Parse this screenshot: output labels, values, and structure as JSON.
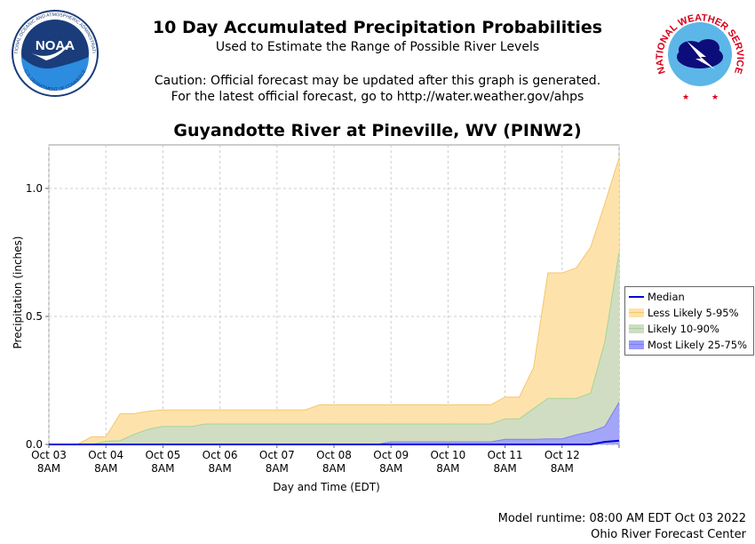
{
  "header": {
    "title": "10 Day Accumulated Precipitation Probabilities",
    "subtitle": "Used to Estimate the Range of Possible River Levels",
    "caution_line1": "Caution: Official forecast may be updated after this graph is generated.",
    "caution_line2": "For the latest official forecast, go to http://water.weather.gov/ahps"
  },
  "logos": {
    "noaa_text": "NOAA",
    "noaa_ring_top": "NATIONAL OCEANIC AND ATMOSPHERIC ADMINISTRATION",
    "noaa_ring_bottom": "U.S. DEPARTMENT OF COMMERCE",
    "nws_ring": "NATIONAL WEATHER SERVICE"
  },
  "footer": {
    "runtime": "Model runtime: 08:00 AM EDT Oct 03 2022",
    "center": "Ohio River Forecast Center"
  },
  "colors": {
    "median": "#0000dd",
    "less_likely_fill": "#fde2a6",
    "less_likely_line": "#f5c66e",
    "likely_fill": "#cfdcc3",
    "likely_line": "#a5d39a",
    "most_likely_fill": "#9b9bff",
    "most_likely_line": "#7f7ff0",
    "grid": "#cccccc"
  },
  "chart_data": {
    "type": "area",
    "title": "Guyandotte River at Pineville, WV (PINW2)",
    "xlabel": "Day and Time (EDT)",
    "ylabel": "Precipitation (inches)",
    "ylim": [
      0,
      1.17
    ],
    "yticks": [
      "0.0",
      "0.5",
      "1.0"
    ],
    "ytick_values": [
      0,
      0.5,
      1.0
    ],
    "xlim": [
      0,
      10
    ],
    "xticks": [
      {
        "line1": "Oct 03",
        "line2": "8AM"
      },
      {
        "line1": "Oct 04",
        "line2": "8AM"
      },
      {
        "line1": "Oct 05",
        "line2": "8AM"
      },
      {
        "line1": "Oct 06",
        "line2": "8AM"
      },
      {
        "line1": "Oct 07",
        "line2": "8AM"
      },
      {
        "line1": "Oct 08",
        "line2": "8AM"
      },
      {
        "line1": "Oct 09",
        "line2": "8AM"
      },
      {
        "line1": "Oct 10",
        "line2": "8AM"
      },
      {
        "line1": "Oct 11",
        "line2": "8AM"
      },
      {
        "line1": "Oct 12",
        "line2": "8AM"
      }
    ],
    "grid": true,
    "legend_position": "right",
    "x": [
      0,
      0.25,
      0.5,
      0.75,
      1,
      1.25,
      1.5,
      1.75,
      2,
      2.25,
      2.5,
      2.75,
      3,
      3.25,
      3.5,
      3.75,
      4,
      4.25,
      4.5,
      4.75,
      5,
      5.25,
      5.5,
      5.75,
      6,
      6.25,
      6.5,
      6.75,
      7,
      7.25,
      7.5,
      7.75,
      8,
      8.25,
      8.5,
      8.75,
      9,
      9.25,
      9.5,
      9.75,
      10
    ],
    "series": [
      {
        "name": "Less Likely 5-95%",
        "lower": [
          0,
          0,
          0,
          0,
          0,
          0,
          0,
          0,
          0,
          0,
          0,
          0,
          0,
          0,
          0,
          0,
          0,
          0,
          0,
          0,
          0,
          0,
          0,
          0,
          0,
          0,
          0,
          0,
          0,
          0,
          0,
          0,
          0,
          0,
          0,
          0,
          0,
          0,
          0,
          0,
          0
        ],
        "upper": [
          0,
          0,
          0,
          0.03,
          0.03,
          0.12,
          0.12,
          0.13,
          0.135,
          0.135,
          0.135,
          0.135,
          0.135,
          0.135,
          0.135,
          0.135,
          0.135,
          0.135,
          0.135,
          0.155,
          0.155,
          0.155,
          0.155,
          0.155,
          0.155,
          0.155,
          0.155,
          0.155,
          0.155,
          0.155,
          0.155,
          0.155,
          0.185,
          0.185,
          0.3,
          0.67,
          0.67,
          0.69,
          0.77,
          0.94,
          1.12
        ]
      },
      {
        "name": "Likely 10-90%",
        "lower": [
          0,
          0,
          0,
          0,
          0,
          0,
          0,
          0,
          0,
          0,
          0,
          0,
          0,
          0,
          0,
          0,
          0,
          0,
          0,
          0,
          0,
          0,
          0,
          0,
          0,
          0,
          0,
          0,
          0,
          0,
          0,
          0,
          0,
          0,
          0,
          0,
          0,
          0,
          0,
          0,
          0
        ],
        "upper": [
          0,
          0,
          0,
          0,
          0.012,
          0.015,
          0.04,
          0.06,
          0.07,
          0.07,
          0.07,
          0.08,
          0.08,
          0.08,
          0.08,
          0.08,
          0.08,
          0.08,
          0.08,
          0.08,
          0.08,
          0.08,
          0.08,
          0.08,
          0.08,
          0.08,
          0.08,
          0.08,
          0.08,
          0.08,
          0.08,
          0.08,
          0.1,
          0.1,
          0.14,
          0.18,
          0.18,
          0.18,
          0.2,
          0.4,
          0.75
        ]
      },
      {
        "name": "Most Likely 25-75%",
        "lower": [
          0,
          0,
          0,
          0,
          0,
          0,
          0,
          0,
          0,
          0,
          0,
          0,
          0,
          0,
          0,
          0,
          0,
          0,
          0,
          0,
          0,
          0,
          0,
          0,
          0,
          0,
          0,
          0,
          0,
          0,
          0,
          0,
          0,
          0,
          0,
          0,
          0,
          0,
          0,
          0,
          0
        ],
        "upper": [
          0,
          0,
          0,
          0,
          0,
          0,
          0,
          0,
          0,
          0,
          0,
          0,
          0,
          0,
          0,
          0,
          0,
          0,
          0,
          0,
          0,
          0,
          0,
          0,
          0.01,
          0.01,
          0.01,
          0.01,
          0.01,
          0.01,
          0.01,
          0.01,
          0.02,
          0.02,
          0.02,
          0.022,
          0.022,
          0.038,
          0.05,
          0.07,
          0.165
        ]
      },
      {
        "name": "Median",
        "values": [
          0,
          0,
          0,
          0,
          0,
          0,
          0,
          0,
          0,
          0,
          0,
          0,
          0,
          0,
          0,
          0,
          0,
          0,
          0,
          0,
          0,
          0,
          0,
          0,
          0,
          0,
          0,
          0,
          0,
          0,
          0,
          0,
          0,
          0,
          0,
          0,
          0,
          0,
          0,
          0.01,
          0.015
        ]
      }
    ]
  }
}
